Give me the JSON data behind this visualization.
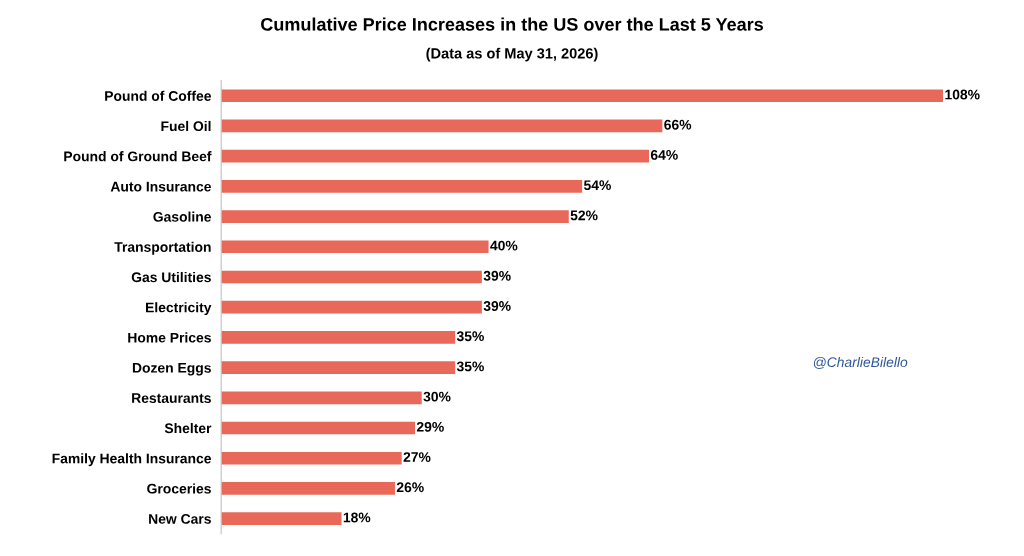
{
  "chart_data": {
    "type": "bar",
    "orientation": "horizontal",
    "title": "Cumulative Price Increases in the US over the Last 5 Years",
    "subtitle": "(Data as of May 31, 2026)",
    "categories": [
      "Pound of Coffee",
      "Fuel Oil",
      "Pound of Ground Beef",
      "Auto Insurance",
      "Gasoline",
      "Transportation",
      "Gas Utilities",
      "Electricity",
      "Home Prices",
      "Dozen Eggs",
      "Restaurants",
      "Shelter",
      "Family Health Insurance",
      "Groceries",
      "New Cars"
    ],
    "values": [
      108,
      66,
      64,
      54,
      52,
      40,
      39,
      39,
      35,
      35,
      30,
      29,
      27,
      26,
      18
    ],
    "value_labels": [
      "108%",
      "66%",
      "64%",
      "54%",
      "52%",
      "40%",
      "39%",
      "39%",
      "35%",
      "35%",
      "30%",
      "29%",
      "27%",
      "26%",
      "18%"
    ],
    "color": "#e8685a",
    "tick_labels": "y",
    "grid": false,
    "legend": false,
    "annotations": [
      {
        "text": "@CharlieBilello"
      }
    ]
  }
}
